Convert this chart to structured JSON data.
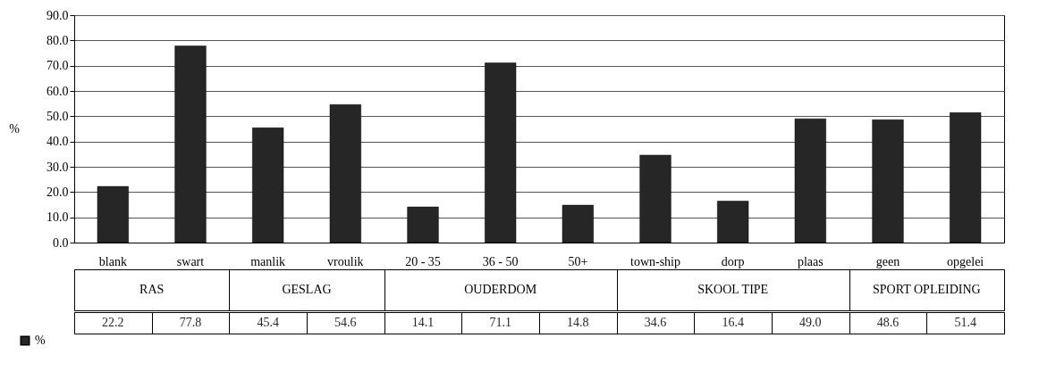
{
  "chart_data": {
    "type": "bar",
    "ylabel": "%",
    "categories": [
      "blank",
      "swart",
      "manlik",
      "vroulik",
      "20 - 35",
      "36 - 50",
      "50+",
      "town-ship",
      "dorp",
      "plaas",
      "geen",
      "opgelei"
    ],
    "series": [
      {
        "name": "%",
        "color": "#262626",
        "values": [
          22.2,
          77.8,
          45.4,
          54.6,
          14.1,
          71.1,
          14.8,
          34.6,
          16.4,
          49.0,
          48.6,
          51.4
        ],
        "value_labels": [
          "22.2",
          "77.8",
          "45.4",
          "54.6",
          "14.1",
          "71.1",
          "14.8",
          "34.6",
          "16.4",
          "49.0",
          "48.6",
          "51.4"
        ]
      }
    ],
    "annotations": [
      "RAS",
      "GESLAG",
      "OUDERDOM",
      "SKOOL TIPE",
      "SPORT OPLEIDING"
    ],
    "ylim": [
      0,
      90
    ],
    "yticks": [
      {
        "value": 0,
        "label": "0.0"
      },
      {
        "value": 10,
        "label": "10.0"
      },
      {
        "value": 20,
        "label": "20.0"
      },
      {
        "value": 30,
        "label": "30.0"
      },
      {
        "value": 40,
        "label": "40.0"
      },
      {
        "value": 50,
        "label": "50.0"
      },
      {
        "value": 60,
        "label": "60.0"
      },
      {
        "value": 70,
        "label": "70.0"
      },
      {
        "value": 80,
        "label": "80.0"
      },
      {
        "value": 90,
        "label": "90.0"
      }
    ],
    "grid": true,
    "legend": "bottom left"
  }
}
